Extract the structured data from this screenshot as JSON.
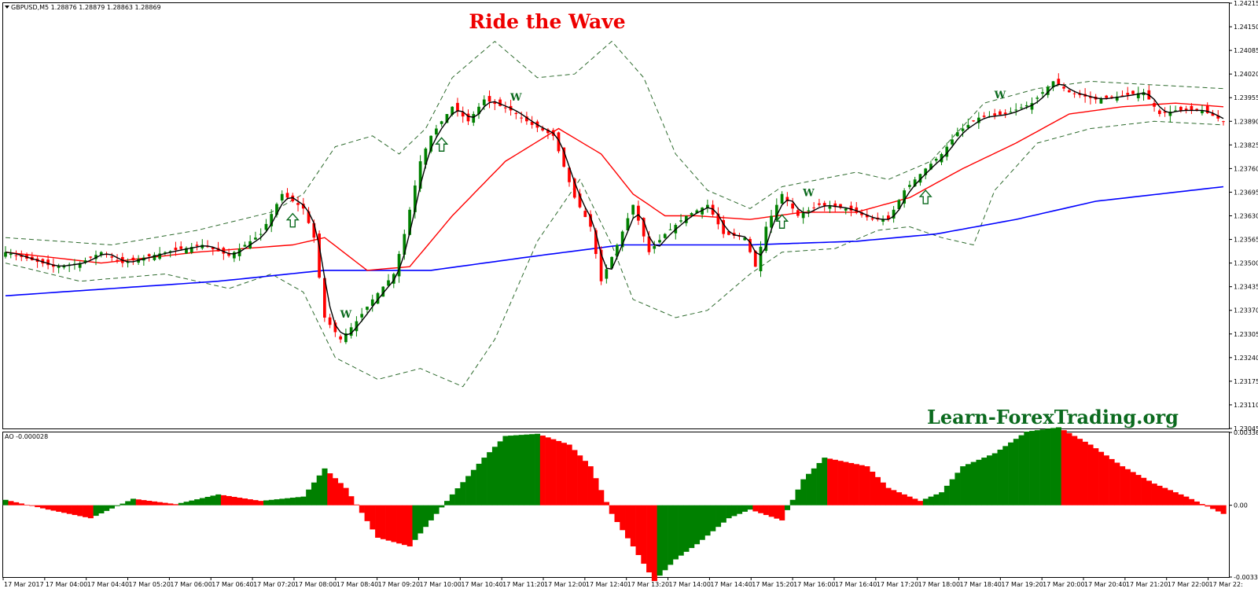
{
  "chart_data": {
    "type": "candlestick",
    "title": "Ride the Wave",
    "watermark": "Learn-ForexTrading.org",
    "main_panel": {
      "symbol_info": "GBPUSD,M5  1.28876 1.28879 1.28863 1.28869",
      "y_ticks": [
        "1.24215",
        "1.24150",
        "1.24085",
        "1.24020",
        "1.23955",
        "1.23890",
        "1.23825",
        "1.23760",
        "1.23695",
        "1.23630",
        "1.23565",
        "1.23500",
        "1.23435",
        "1.23370",
        "1.23305",
        "1.23240",
        "1.23175",
        "1.23110",
        "1.23045"
      ],
      "ylim": [
        1.23045,
        1.24215
      ],
      "candle_anchors": [
        [
          0,
          1.2353
        ],
        [
          9,
          1.2349
        ],
        [
          14,
          1.235
        ],
        [
          18,
          1.2353
        ],
        [
          22,
          1.235
        ],
        [
          30,
          1.2353
        ],
        [
          37,
          1.2355
        ],
        [
          42,
          1.2352
        ],
        [
          48,
          1.2358
        ],
        [
          52,
          1.2369
        ],
        [
          56,
          1.2365
        ],
        [
          58,
          1.2357
        ],
        [
          60,
          1.2335
        ],
        [
          63,
          1.2329
        ],
        [
          66,
          1.2334
        ],
        [
          69,
          1.234
        ],
        [
          73,
          1.2347
        ],
        [
          75,
          1.2358
        ],
        [
          78,
          1.2378
        ],
        [
          80,
          1.2385
        ],
        [
          84,
          1.2393
        ],
        [
          87,
          1.2389
        ],
        [
          90,
          1.2395
        ],
        [
          95,
          1.2392
        ],
        [
          99,
          1.2388
        ],
        [
          103,
          1.2385
        ],
        [
          107,
          1.2368
        ],
        [
          110,
          1.236
        ],
        [
          112,
          1.2345
        ],
        [
          115,
          1.2355
        ],
        [
          118,
          1.2366
        ],
        [
          121,
          1.2353
        ],
        [
          124,
          1.2358
        ],
        [
          128,
          1.2363
        ],
        [
          132,
          1.2366
        ],
        [
          135,
          1.2358
        ],
        [
          139,
          1.2357
        ],
        [
          141,
          1.2349
        ],
        [
          143,
          1.236
        ],
        [
          146,
          1.2369
        ],
        [
          149,
          1.2363
        ],
        [
          153,
          1.2366
        ],
        [
          158,
          1.2365
        ],
        [
          163,
          1.2362
        ],
        [
          166,
          1.2362
        ],
        [
          169,
          1.237
        ],
        [
          173,
          1.2376
        ],
        [
          176,
          1.238
        ],
        [
          179,
          1.2386
        ],
        [
          183,
          1.239
        ],
        [
          188,
          1.2391
        ],
        [
          193,
          1.2394
        ],
        [
          197,
          1.24
        ],
        [
          200,
          1.2397
        ],
        [
          205,
          1.2395
        ],
        [
          210,
          1.2396
        ],
        [
          214,
          1.2397
        ],
        [
          217,
          1.2391
        ],
        [
          220,
          1.2392
        ],
        [
          225,
          1.2392
        ],
        [
          229,
          1.2389
        ]
      ],
      "bollinger_upper_anchors": [
        [
          0,
          1.2357
        ],
        [
          20,
          1.2355
        ],
        [
          36,
          1.2359
        ],
        [
          50,
          1.2364
        ],
        [
          56,
          1.2369
        ],
        [
          62,
          1.2382
        ],
        [
          69,
          1.2385
        ],
        [
          74,
          1.238
        ],
        [
          79,
          1.2387
        ],
        [
          84,
          1.2401
        ],
        [
          92,
          1.2411
        ],
        [
          100,
          1.2401
        ],
        [
          107,
          1.2402
        ],
        [
          114,
          1.2411
        ],
        [
          120,
          1.2401
        ],
        [
          126,
          1.238
        ],
        [
          132,
          1.237
        ],
        [
          140,
          1.2365
        ],
        [
          146,
          1.2371
        ],
        [
          160,
          1.2375
        ],
        [
          166,
          1.2373
        ],
        [
          174,
          1.2378
        ],
        [
          184,
          1.2394
        ],
        [
          194,
          1.2398
        ],
        [
          204,
          1.24
        ],
        [
          216,
          1.2399
        ],
        [
          229,
          1.2398
        ]
      ],
      "bollinger_lower_anchors": [
        [
          0,
          1.235
        ],
        [
          14,
          1.2345
        ],
        [
          30,
          1.2347
        ],
        [
          42,
          1.2343
        ],
        [
          50,
          1.2347
        ],
        [
          56,
          1.2342
        ],
        [
          62,
          1.2324
        ],
        [
          70,
          1.2318
        ],
        [
          78,
          1.2321
        ],
        [
          86,
          1.2316
        ],
        [
          92,
          1.2329
        ],
        [
          100,
          1.2356
        ],
        [
          108,
          1.2373
        ],
        [
          114,
          1.2355
        ],
        [
          118,
          1.234
        ],
        [
          126,
          1.2335
        ],
        [
          132,
          1.2337
        ],
        [
          140,
          1.2347
        ],
        [
          146,
          1.2353
        ],
        [
          156,
          1.2354
        ],
        [
          164,
          1.2359
        ],
        [
          170,
          1.236
        ],
        [
          176,
          1.2357
        ],
        [
          182,
          1.2355
        ],
        [
          186,
          1.237
        ],
        [
          194,
          1.2383
        ],
        [
          204,
          1.2387
        ],
        [
          216,
          1.2389
        ],
        [
          229,
          1.2388
        ]
      ],
      "ma_red_anchors": [
        [
          0,
          1.2353
        ],
        [
          18,
          1.235
        ],
        [
          36,
          1.2353
        ],
        [
          54,
          1.2355
        ],
        [
          60,
          1.2357
        ],
        [
          68,
          1.2348
        ],
        [
          76,
          1.2349
        ],
        [
          84,
          1.2363
        ],
        [
          94,
          1.2378
        ],
        [
          104,
          1.2387
        ],
        [
          112,
          1.238
        ],
        [
          118,
          1.2369
        ],
        [
          124,
          1.2363
        ],
        [
          130,
          1.2363
        ],
        [
          140,
          1.2362
        ],
        [
          150,
          1.2364
        ],
        [
          160,
          1.2364
        ],
        [
          170,
          1.2368
        ],
        [
          180,
          1.2376
        ],
        [
          190,
          1.2383
        ],
        [
          200,
          1.2391
        ],
        [
          210,
          1.2393
        ],
        [
          220,
          1.2394
        ],
        [
          229,
          1.2393
        ]
      ],
      "ma_blue_anchors": [
        [
          0,
          1.2341
        ],
        [
          20,
          1.2343
        ],
        [
          40,
          1.2345
        ],
        [
          60,
          1.2348
        ],
        [
          80,
          1.2348
        ],
        [
          100,
          1.2352
        ],
        [
          116,
          1.2355
        ],
        [
          140,
          1.2355
        ],
        [
          160,
          1.2356
        ],
        [
          175,
          1.2358
        ],
        [
          190,
          1.2362
        ],
        [
          205,
          1.2367
        ],
        [
          229,
          1.2371
        ]
      ],
      "colors": {
        "bull": "#008000",
        "bear": "#ff0000",
        "ma_black": "#000000",
        "ma_red": "#ff0000",
        "ma_blue": "#0000ff",
        "bands": "#2e6b2e",
        "signal": "#0b6a1e"
      },
      "arrow_bars": [
        54,
        82,
        146,
        173
      ],
      "w_bars": [
        64,
        96,
        151,
        187
      ]
    },
    "ao_panel": {
      "label": "AO -0.000028",
      "y_ticks": [
        "0.003364",
        "0.00",
        "-0.003316"
      ],
      "ylim": [
        -0.003316,
        0.003364
      ],
      "anchors": [
        [
          0,
          0.00025
        ],
        [
          8,
          -0.0002
        ],
        [
          16,
          -0.0006
        ],
        [
          24,
          0.0003
        ],
        [
          32,
          5e-05
        ],
        [
          40,
          0.0005
        ],
        [
          48,
          0.0002
        ],
        [
          56,
          0.0004
        ],
        [
          60,
          0.0017
        ],
        [
          64,
          0.0008
        ],
        [
          70,
          -0.0015
        ],
        [
          76,
          -0.0019
        ],
        [
          84,
          0.0005
        ],
        [
          90,
          0.0022
        ],
        [
          94,
          0.0032
        ],
        [
          100,
          0.0033
        ],
        [
          106,
          0.0028
        ],
        [
          110,
          0.0018
        ],
        [
          114,
          -0.0004
        ],
        [
          118,
          -0.0019
        ],
        [
          122,
          -0.0035
        ],
        [
          126,
          -0.0025
        ],
        [
          130,
          -0.0018
        ],
        [
          136,
          -0.0006
        ],
        [
          140,
          -0.0002
        ],
        [
          146,
          -0.0007
        ],
        [
          150,
          0.0012
        ],
        [
          154,
          0.0022
        ],
        [
          158,
          0.002
        ],
        [
          162,
          0.0018
        ],
        [
          166,
          0.0008
        ],
        [
          172,
          0.0002
        ],
        [
          176,
          0.0006
        ],
        [
          180,
          0.0018
        ],
        [
          186,
          0.0024
        ],
        [
          192,
          0.0034
        ],
        [
          198,
          0.0036
        ],
        [
          204,
          0.0028
        ],
        [
          210,
          0.0018
        ],
        [
          216,
          0.001
        ],
        [
          222,
          0.0004
        ],
        [
          229,
          -0.0004
        ]
      ]
    },
    "x_ticks": [
      "17 Mar 2017",
      "17 Mar 04:00",
      "17 Mar 04:40",
      "17 Mar 05:20",
      "17 Mar 06:00",
      "17 Mar 06:40",
      "17 Mar 07:20",
      "17 Mar 08:00",
      "17 Mar 08:40",
      "17 Mar 09:20",
      "17 Mar 10:00",
      "17 Mar 10:40",
      "17 Mar 11:20",
      "17 Mar 12:00",
      "17 Mar 12:40",
      "17 Mar 13:20",
      "17 Mar 14:00",
      "17 Mar 14:40",
      "17 Mar 15:20",
      "17 Mar 16:00",
      "17 Mar 16:40",
      "17 Mar 17:20",
      "17 Mar 18:00",
      "17 Mar 18:40",
      "17 Mar 19:20",
      "17 Mar 20:00",
      "17 Mar 20:40",
      "17 Mar 21:20",
      "17 Mar 22:00",
      "17 Mar 22:"
    ],
    "n_bars": 230
  }
}
